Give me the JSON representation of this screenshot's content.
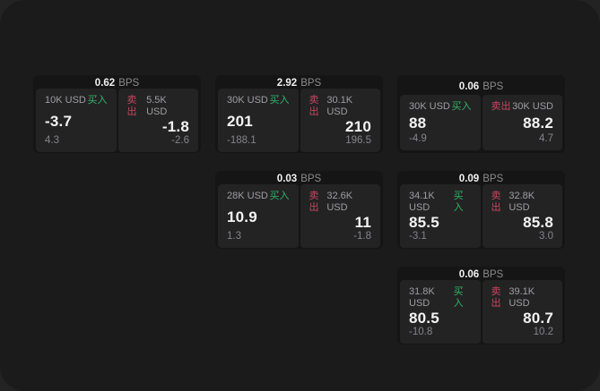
{
  "labels": {
    "bps_unit": "BPS",
    "buy": "买入",
    "sell": "卖出"
  },
  "colors": {
    "window_bg": "#1a1b1a",
    "card_bg": "#151515",
    "panel_bg": "#232324",
    "buy_green": "#35b269",
    "sell_red": "#c9465f"
  },
  "cards": [
    {
      "row": 1,
      "col": 1,
      "bps": "0.62",
      "buy": {
        "amount": "10K USD",
        "value": "-3.7",
        "sub": "4.3"
      },
      "sell": {
        "amount": "5.5K USD",
        "value": "-1.8",
        "sub": "-2.6"
      }
    },
    {
      "row": 1,
      "col": 2,
      "bps": "2.92",
      "buy": {
        "amount": "30K USD",
        "value": "201",
        "sub": "-188.1"
      },
      "sell": {
        "amount": "30.1K USD",
        "value": "210",
        "sub": "196.5"
      }
    },
    {
      "row": 1,
      "col": 3,
      "bps": "0.06",
      "buy": {
        "amount": "30K USD",
        "value": "88",
        "sub": "-4.9"
      },
      "sell": {
        "amount": "30K USD",
        "value": "88.2",
        "sub": "4.7"
      }
    },
    {
      "row": 2,
      "col": 2,
      "bps": "0.03",
      "buy": {
        "amount": "28K USD",
        "value": "10.9",
        "sub": "1.3"
      },
      "sell": {
        "amount": "32.6K USD",
        "value": "11",
        "sub": "-1.8"
      }
    },
    {
      "row": 2,
      "col": 3,
      "bps": "0.09",
      "buy": {
        "amount": "34.1K USD",
        "value": "85.5",
        "sub": "-3.1"
      },
      "sell": {
        "amount": "32.8K USD",
        "value": "85.8",
        "sub": "3.0"
      }
    },
    {
      "row": 3,
      "col": 3,
      "bps": "0.06",
      "buy": {
        "amount": "31.8K USD",
        "value": "80.5",
        "sub": "-10.8"
      },
      "sell": {
        "amount": "39.1K USD",
        "value": "80.7",
        "sub": "10.2"
      }
    }
  ]
}
